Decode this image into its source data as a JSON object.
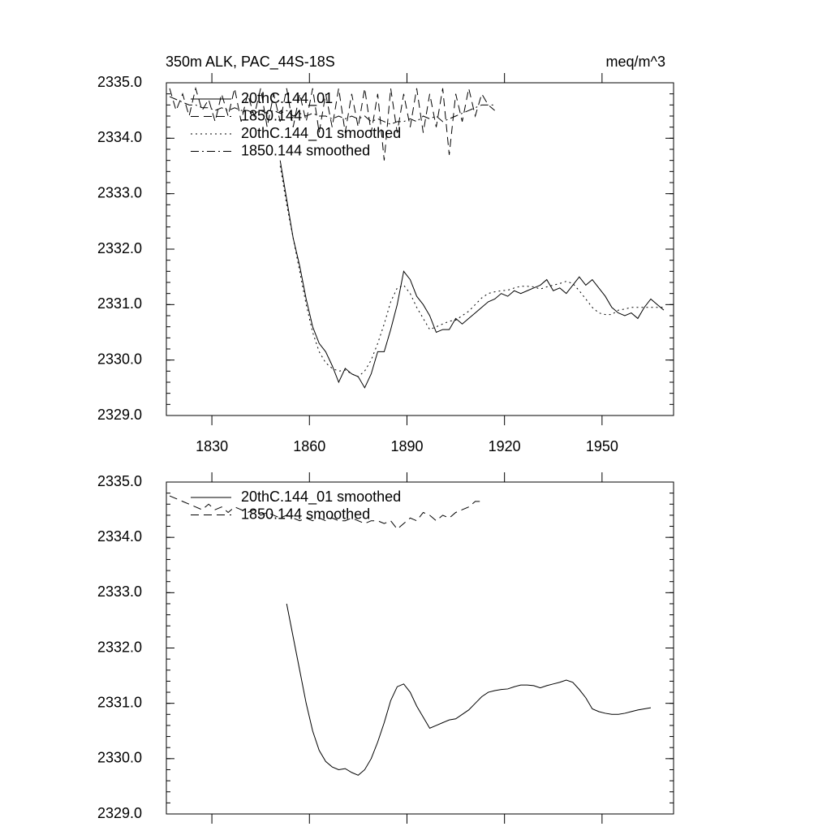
{
  "chart_data": [
    {
      "type": "line",
      "title": "350m ALK, PAC_44S-18S",
      "units": "meq/m^3",
      "x": [
        1817,
        1819,
        1821,
        1823,
        1825,
        1827,
        1829,
        1831,
        1833,
        1835,
        1837,
        1839,
        1841,
        1843,
        1845,
        1847,
        1849,
        1851,
        1853,
        1855,
        1857,
        1859,
        1861,
        1863,
        1865,
        1867,
        1869,
        1871,
        1873,
        1875,
        1877,
        1879,
        1881,
        1883,
        1885,
        1887,
        1889,
        1891,
        1893,
        1895,
        1897,
        1899,
        1901,
        1903,
        1905,
        1907,
        1909,
        1911,
        1913,
        1915,
        1917,
        1919,
        1921,
        1923,
        1925,
        1927,
        1929,
        1931,
        1933,
        1935,
        1937,
        1939,
        1941,
        1943,
        1945,
        1947,
        1949,
        1951,
        1953,
        1955,
        1957,
        1959,
        1961,
        1963,
        1965,
        1967,
        1969
      ],
      "xlim": [
        1816,
        1972
      ],
      "xticks": [
        1830,
        1860,
        1890,
        1920,
        1950
      ],
      "xtick_labels": true,
      "ylim": [
        2329,
        2335
      ],
      "yticks": [
        {
          "value": 2329,
          "label": "2329.0"
        },
        {
          "value": 2330,
          "label": "2330.0"
        },
        {
          "value": 2331,
          "label": "2331.0"
        },
        {
          "value": 2332,
          "label": "2332.0"
        },
        {
          "value": 2333,
          "label": "2333.0"
        },
        {
          "value": 2334,
          "label": "2334.0"
        },
        {
          "value": 2335,
          "label": "2335.0"
        }
      ],
      "series": [
        {
          "name": "20thC.144_01",
          "color": "#000000",
          "style": "solid",
          "values": [
            null,
            null,
            null,
            null,
            null,
            null,
            null,
            null,
            null,
            null,
            null,
            null,
            null,
            null,
            null,
            null,
            null,
            2333.6,
            2332.9,
            2332.2,
            2331.7,
            2331.1,
            2330.6,
            2330.3,
            2330.15,
            2329.9,
            2329.6,
            2329.85,
            2329.75,
            2329.7,
            2329.5,
            2329.75,
            2330.15,
            2330.15,
            2330.55,
            2331.0,
            2331.6,
            2331.45,
            2331.15,
            2331.0,
            2330.8,
            2330.5,
            2330.55,
            2330.55,
            2330.75,
            2330.65,
            2330.75,
            2330.85,
            2330.95,
            2331.05,
            2331.1,
            2331.2,
            2331.15,
            2331.25,
            2331.2,
            2331.25,
            2331.3,
            2331.35,
            2331.45,
            2331.25,
            2331.3,
            2331.2,
            2331.35,
            2331.5,
            2331.35,
            2331.45,
            2331.3,
            2331.15,
            2330.95,
            2330.85,
            2330.8,
            2330.85,
            2330.75,
            2330.95,
            2331.1,
            2331.0,
            2330.9
          ]
        },
        {
          "name": "1850.144",
          "color": "#000000",
          "style": "dashed",
          "values": [
            2334.9,
            2334.5,
            2334.8,
            2334.4,
            2334.9,
            2334.5,
            2334.7,
            2334.3,
            2334.8,
            2334.4,
            2334.9,
            2334.3,
            2334.8,
            2334.4,
            2334.9,
            2334.2,
            2334.8,
            2334.3,
            2334.9,
            2334.2,
            2334.8,
            2334.3,
            2334.9,
            2334.1,
            2334.8,
            2334.2,
            2334.9,
            2334.1,
            2334.8,
            2334.2,
            2334.9,
            2334.1,
            2334.8,
            2333.6,
            2334.9,
            2334.1,
            2334.8,
            2334.2,
            2334.9,
            2334.1,
            2334.8,
            2334.2,
            2334.9,
            2333.7,
            2334.8,
            2334.3,
            2334.9,
            2334.4,
            2334.8,
            2334.6,
            2334.5,
            null,
            null,
            null,
            null,
            null,
            null,
            null,
            null,
            null,
            null,
            null,
            null,
            null,
            null,
            null,
            null,
            null,
            null,
            null,
            null,
            null,
            null,
            null,
            null,
            null,
            null
          ]
        },
        {
          "name": "20thC.144_01 smoothed",
          "color": "#000000",
          "style": "dotted",
          "values": [
            null,
            null,
            null,
            null,
            null,
            null,
            null,
            null,
            null,
            null,
            null,
            null,
            null,
            null,
            null,
            null,
            null,
            2333.5,
            2332.8,
            2332.2,
            2331.6,
            2331.0,
            2330.5,
            2330.15,
            2329.95,
            2329.85,
            2329.8,
            2329.82,
            2329.75,
            2329.7,
            2329.8,
            2330.0,
            2330.3,
            2330.65,
            2331.05,
            2331.3,
            2331.35,
            2331.2,
            2330.95,
            2330.75,
            2330.55,
            2330.6,
            2330.65,
            2330.7,
            2330.72,
            2330.8,
            2330.88,
            2331.0,
            2331.12,
            2331.2,
            2331.23,
            2331.25,
            2331.26,
            2331.3,
            2331.33,
            2331.33,
            2331.32,
            2331.28,
            2331.32,
            2331.35,
            2331.38,
            2331.42,
            2331.38,
            2331.25,
            2331.1,
            2330.95,
            2330.85,
            2330.82,
            2330.82,
            2330.9,
            2330.92,
            2330.95,
            2330.95,
            2330.95,
            2330.95,
            2330.95,
            2330.95
          ]
        },
        {
          "name": "1850.144 smoothed",
          "color": "#000000",
          "style": "dashdot",
          "values": [
            2334.75,
            2334.7,
            2334.65,
            2334.6,
            2334.6,
            2334.55,
            2334.55,
            2334.5,
            2334.55,
            2334.5,
            2334.55,
            2334.5,
            2334.5,
            2334.45,
            2334.5,
            2334.45,
            2334.5,
            2334.45,
            2334.5,
            2334.4,
            2334.45,
            2334.4,
            2334.45,
            2334.4,
            2334.4,
            2334.35,
            2334.4,
            2334.35,
            2334.4,
            2334.35,
            2334.4,
            2334.3,
            2334.35,
            2334.3,
            2334.25,
            2334.3,
            2334.3,
            2334.35,
            2334.3,
            2334.4,
            2334.35,
            2334.4,
            2334.3,
            2334.35,
            2334.4,
            2334.45,
            2334.5,
            2334.55,
            2334.6,
            2334.6,
            2334.6,
            null,
            null,
            null,
            null,
            null,
            null,
            null,
            null,
            null,
            null,
            null,
            null,
            null,
            null,
            null,
            null,
            null,
            null,
            null,
            null,
            null,
            null,
            null,
            null,
            null,
            null
          ]
        }
      ]
    },
    {
      "type": "line",
      "x": [
        1817,
        1819,
        1821,
        1823,
        1825,
        1827,
        1829,
        1831,
        1833,
        1835,
        1837,
        1839,
        1841,
        1843,
        1845,
        1847,
        1849,
        1851,
        1853,
        1855,
        1857,
        1859,
        1861,
        1863,
        1865,
        1867,
        1869,
        1871,
        1873,
        1875,
        1877,
        1879,
        1881,
        1883,
        1885,
        1887,
        1889,
        1891,
        1893,
        1895,
        1897,
        1899,
        1901,
        1903,
        1905,
        1907,
        1909,
        1911,
        1913,
        1915,
        1917,
        1919,
        1921,
        1923,
        1925,
        1927,
        1929,
        1931,
        1933,
        1935,
        1937,
        1939,
        1941,
        1943,
        1945,
        1947,
        1949,
        1951,
        1953,
        1955,
        1957,
        1959,
        1961,
        1963,
        1965
      ],
      "xlim": [
        1816,
        1972
      ],
      "xticks": [
        1830,
        1860,
        1890,
        1920,
        1950
      ],
      "xtick_labels": false,
      "ylim": [
        2329,
        2335
      ],
      "yticks": [
        {
          "value": 2329,
          "label": "2329.0"
        },
        {
          "value": 2330,
          "label": "2330.0"
        },
        {
          "value": 2331,
          "label": "2331.0"
        },
        {
          "value": 2332,
          "label": "2332.0"
        },
        {
          "value": 2333,
          "label": "2333.0"
        },
        {
          "value": 2334,
          "label": "2334.0"
        },
        {
          "value": 2335,
          "label": "2335.0"
        }
      ],
      "series": [
        {
          "name": "20thC.144_01 smoothed",
          "color": "#000000",
          "style": "solid",
          "values": [
            null,
            null,
            null,
            null,
            null,
            null,
            null,
            null,
            null,
            null,
            null,
            null,
            null,
            null,
            null,
            null,
            null,
            null,
            2332.8,
            2332.2,
            2331.6,
            2331.0,
            2330.5,
            2330.15,
            2329.95,
            2329.85,
            2329.8,
            2329.82,
            2329.75,
            2329.7,
            2329.8,
            2330.0,
            2330.3,
            2330.65,
            2331.05,
            2331.3,
            2331.35,
            2331.2,
            2330.95,
            2330.75,
            2330.55,
            2330.6,
            2330.65,
            2330.7,
            2330.72,
            2330.8,
            2330.88,
            2331.0,
            2331.12,
            2331.2,
            2331.23,
            2331.25,
            2331.26,
            2331.3,
            2331.33,
            2331.33,
            2331.32,
            2331.28,
            2331.32,
            2331.35,
            2331.38,
            2331.42,
            2331.38,
            2331.25,
            2331.1,
            2330.9,
            2330.85,
            2330.82,
            2330.8,
            2330.8,
            2330.82,
            2330.85,
            2330.88,
            2330.9,
            2330.92
          ]
        },
        {
          "name": "1850.144 smoothed",
          "color": "#000000",
          "style": "dashed",
          "values": [
            2334.75,
            2334.7,
            2334.65,
            2334.6,
            2334.55,
            2334.5,
            2334.6,
            2334.5,
            2334.55,
            2334.45,
            2334.55,
            2334.5,
            2334.45,
            2334.5,
            2334.4,
            2334.45,
            2334.4,
            2334.35,
            2334.4,
            2334.35,
            2334.3,
            2334.35,
            2334.3,
            2334.35,
            2334.3,
            2334.35,
            2334.3,
            2334.3,
            2334.35,
            2334.3,
            2334.25,
            2334.3,
            2334.3,
            2334.25,
            2334.3,
            2334.15,
            2334.25,
            2334.35,
            2334.3,
            2334.45,
            2334.4,
            2334.3,
            2334.4,
            2334.35,
            2334.45,
            2334.5,
            2334.55,
            2334.65,
            2334.65,
            null,
            null,
            null,
            null,
            null,
            null,
            null,
            null,
            null,
            null,
            null,
            null,
            null,
            null,
            null,
            null,
            null,
            null,
            null,
            null,
            null,
            null,
            null,
            null,
            null,
            null
          ]
        }
      ]
    }
  ]
}
